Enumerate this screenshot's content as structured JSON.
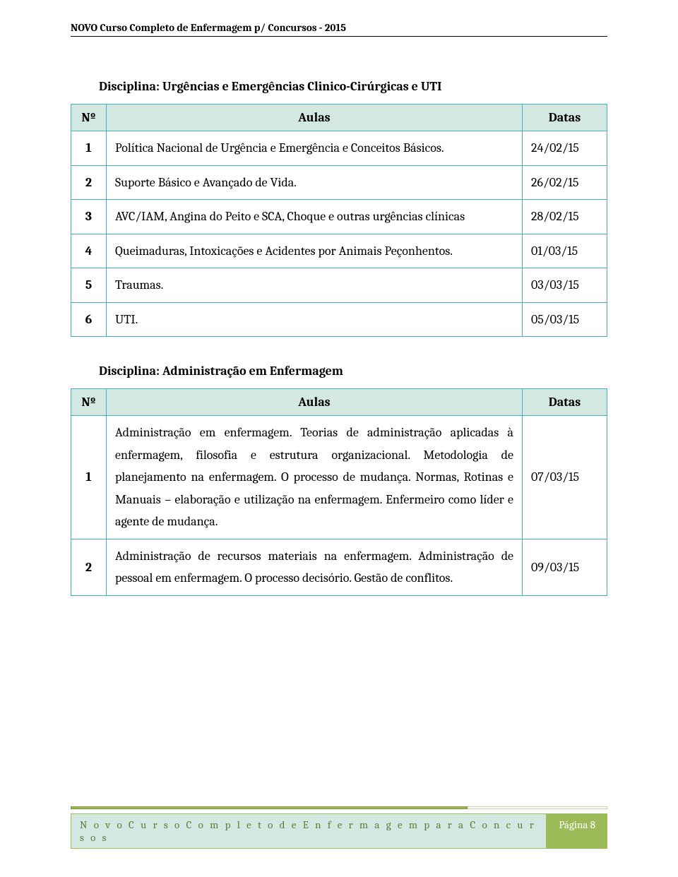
{
  "doc_header": "NOVO Curso Completo de Enfermagem p/ Concursos - 2015",
  "section1": {
    "title": "Disciplina: Urgências e Emergências Clinico-Cirúrgicas e UTI",
    "columns": [
      "Nº",
      "Aulas",
      "Datas"
    ],
    "rows": [
      {
        "n": "1",
        "desc": "Política Nacional de Urgência e Emergência e Conceitos Básicos.",
        "date": "24/02/15"
      },
      {
        "n": "2",
        "desc": "Suporte Básico e Avançado de Vida.",
        "date": "26/02/15"
      },
      {
        "n": "3",
        "desc": "AVC/IAM, Angina do Peito e SCA, Choque e outras urgências clínicas",
        "date": "28/02/15"
      },
      {
        "n": "4",
        "desc": "Queimaduras, Intoxicações e Acidentes por Animais Peçonhentos.",
        "date": "01/03/15"
      },
      {
        "n": "5",
        "desc": "Traumas.",
        "date": "03/03/15"
      },
      {
        "n": "6",
        "desc": "UTI.",
        "date": "05/03/15"
      }
    ]
  },
  "section2": {
    "title": "Disciplina: Administração em Enfermagem",
    "columns": [
      "Nº",
      "Aulas",
      "Datas"
    ],
    "rows": [
      {
        "n": "1",
        "desc": "Administração em enfermagem. Teorias de administração aplicadas à enfermagem, filosofia e estrutura organizacional. Metodologia de planejamento na enfermagem. O processo de mudança. Normas, Rotinas e Manuais – elaboração e utilização na enfermagem. Enfermeiro como líder e agente de mudança.",
        "date": "07/03/15"
      },
      {
        "n": "2",
        "desc": "Administração de recursos materiais na enfermagem. Administração de pessoal em enfermagem. O processo decisório. Gestão de conflitos.",
        "date": "09/03/15"
      }
    ]
  },
  "footer": {
    "title": "N o v o   C u r s o   C o m p l e t o   d e   E n f e r m a g e m   p a r a   C o n c u r s o s",
    "page": "Página 8",
    "colors": {
      "bar_green": "#9bbb59",
      "bar_border": "#7f9a3b",
      "footer_bg": "#d2e8e0",
      "footer_text": "#5a7d3f"
    }
  },
  "table_style": {
    "border_color": "#4bacc6",
    "header_bg": "#d2e8e0",
    "font_size": 18
  }
}
